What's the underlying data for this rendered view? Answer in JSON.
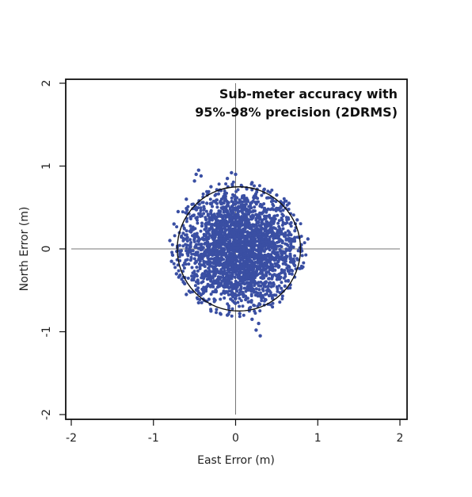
{
  "chart_data": {
    "type": "scatter",
    "title": "",
    "annotation": [
      "Sub-meter accuracy with",
      "95%-98% precision (2DRMS)"
    ],
    "xlabel": "East Error (m)",
    "ylabel": "North Error (m)",
    "xlim": [
      -2,
      2
    ],
    "ylim": [
      -2,
      2
    ],
    "xticks": [
      -2,
      -1,
      0,
      1,
      2
    ],
    "yticks": [
      -2,
      -1,
      0,
      1,
      2
    ],
    "xtick_labels": [
      "-2",
      "-1",
      "0",
      "1",
      "2"
    ],
    "ytick_labels": [
      "-2",
      "-1",
      "0",
      "1",
      "2"
    ],
    "grid": false,
    "crosshair": {
      "x": 0,
      "y": 0
    },
    "circle": {
      "cx": 0.04,
      "cy": 0.0,
      "r": 0.75
    },
    "point_color": "#3a4fa3",
    "series": [
      {
        "values": [
          [
            -0.45,
            0.95
          ],
          [
            -0.48,
            0.9
          ],
          [
            -0.42,
            0.88
          ],
          [
            -0.5,
            0.82
          ],
          [
            -0.05,
            0.92
          ],
          [
            0.0,
            0.9
          ],
          [
            -0.1,
            0.85
          ],
          [
            0.2,
            0.8
          ],
          [
            0.35,
            0.72
          ],
          [
            -0.3,
            0.75
          ],
          [
            -0.6,
            0.6
          ],
          [
            -0.7,
            0.45
          ],
          [
            -0.75,
            0.3
          ],
          [
            -0.8,
            0.1
          ],
          [
            -0.78,
            -0.15
          ],
          [
            -0.72,
            -0.3
          ],
          [
            -0.6,
            -0.55
          ],
          [
            -0.45,
            -0.65
          ],
          [
            -0.3,
            -0.75
          ],
          [
            -0.1,
            -0.8
          ],
          [
            0.05,
            -0.78
          ],
          [
            0.2,
            -0.85
          ],
          [
            0.25,
            -0.98
          ],
          [
            0.3,
            -1.05
          ],
          [
            0.28,
            -0.9
          ],
          [
            0.45,
            -0.6
          ],
          [
            0.6,
            -0.45
          ],
          [
            0.72,
            -0.2
          ],
          [
            0.8,
            0.05
          ],
          [
            0.88,
            0.12
          ],
          [
            0.75,
            0.35
          ],
          [
            0.65,
            0.55
          ],
          [
            0.5,
            0.65
          ],
          [
            0.1,
            0.0
          ],
          [
            -0.2,
            0.3
          ],
          [
            0.3,
            -0.2
          ],
          [
            -0.4,
            -0.3
          ],
          [
            0.45,
            0.25
          ],
          [
            -0.55,
            0.05
          ],
          [
            0.6,
            -0.05
          ],
          [
            -0.15,
            -0.45
          ],
          [
            0.15,
            0.45
          ],
          [
            0.0,
            -0.6
          ],
          [
            -0.35,
            0.55
          ],
          [
            0.4,
            -0.45
          ],
          [
            -0.62,
            -0.42
          ],
          [
            0.55,
            0.5
          ],
          [
            -0.25,
            -0.62
          ],
          [
            0.22,
            0.62
          ],
          [
            0.05,
            0.3
          ]
        ]
      }
    ]
  }
}
